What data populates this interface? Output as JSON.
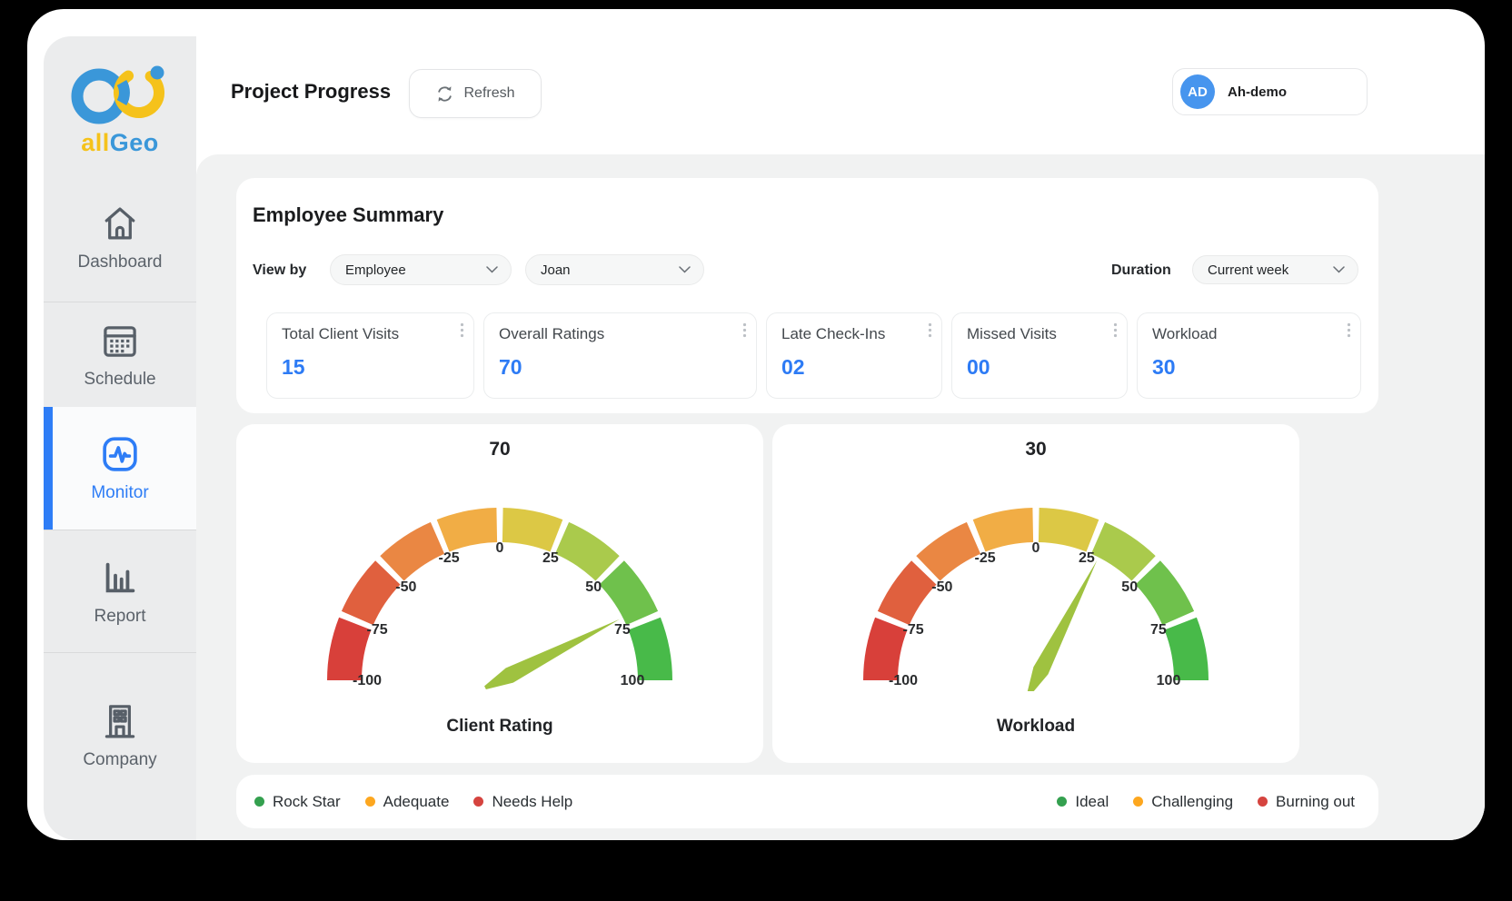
{
  "header": {
    "title": "Project Progress",
    "refresh_label": "Refresh",
    "user": {
      "initials": "AD",
      "name": "Ah-demo"
    }
  },
  "logo": {
    "text_all": "all",
    "text_geo": "Geo"
  },
  "sidebar": {
    "items": [
      {
        "label": "Dashboard",
        "icon": "home-icon",
        "active": false
      },
      {
        "label": "Schedule",
        "icon": "calendar-icon",
        "active": false
      },
      {
        "label": "Monitor",
        "icon": "pulse-monitor-icon",
        "active": true
      },
      {
        "label": "Report",
        "icon": "bar-chart-icon",
        "active": false
      },
      {
        "label": "Company",
        "icon": "building-icon",
        "active": false
      }
    ]
  },
  "summary": {
    "title": "Employee Summary",
    "view_by_label": "View by",
    "view_by_value": "Employee",
    "employee_filter_value": "Joan",
    "duration_label": "Duration",
    "duration_value": "Current week",
    "stats": [
      {
        "label": "Total Client Visits",
        "value": "15"
      },
      {
        "label": "Overall Ratings",
        "value": "70"
      },
      {
        "label": "Late Check-Ins",
        "value": "02"
      },
      {
        "label": "Missed Visits",
        "value": "00"
      },
      {
        "label": "Workload",
        "value": "30"
      }
    ]
  },
  "chart_data": [
    {
      "type": "gauge",
      "title": "Client Rating",
      "value": 70,
      "min": -100,
      "max": 100,
      "ticks": [
        "-100",
        "-75",
        "-50",
        "-25",
        "0",
        "25",
        "50",
        "75",
        "100"
      ],
      "segment_colors": [
        "#d8403a",
        "#e0603e",
        "#ea8743",
        "#f1ad45",
        "#dcc845",
        "#aaca4c",
        "#6fc14c",
        "#48ba49"
      ],
      "needle_color": "#9fc240",
      "legend": [
        {
          "label": "Rock Star",
          "color": "#34a04f"
        },
        {
          "label": "Adequate",
          "color": "#fda71f"
        },
        {
          "label": "Needs Help",
          "color": "#d5443f"
        }
      ]
    },
    {
      "type": "gauge",
      "title": "Workload",
      "value": 30,
      "min": -100,
      "max": 100,
      "ticks": [
        "-100",
        "-75",
        "-50",
        "-25",
        "0",
        "25",
        "50",
        "75",
        "100"
      ],
      "segment_colors": [
        "#d8403a",
        "#e0603e",
        "#ea8743",
        "#f1ad45",
        "#dcc845",
        "#aaca4c",
        "#6fc14c",
        "#48ba49"
      ],
      "needle_color": "#9fc240",
      "legend": [
        {
          "label": "Ideal",
          "color": "#34a04f"
        },
        {
          "label": "Challenging",
          "color": "#fda71f"
        },
        {
          "label": "Burning out",
          "color": "#d5443f"
        }
      ]
    }
  ],
  "colors": {
    "accent_blue": "#2e7df6",
    "stat_value_blue": "#2d7bf5",
    "avatar_blue": "#4795ee",
    "logo_blue": "#3a97d9",
    "logo_yellow": "#f5c21b",
    "sidebar_bg": "#ebeced",
    "content_bg": "#f1f2f2"
  }
}
